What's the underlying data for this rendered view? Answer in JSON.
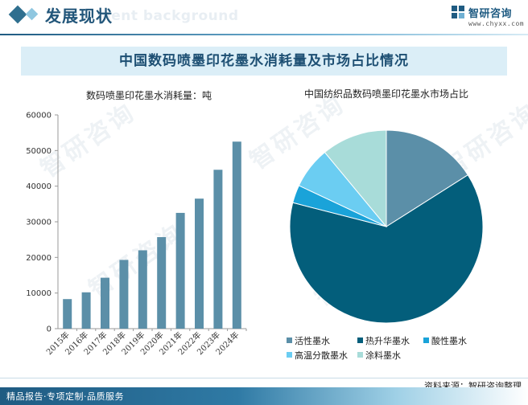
{
  "header": {
    "title": "发展现状",
    "ghost_text": "ment background",
    "logo_name": "智研咨询",
    "logo_url": "www.chyxx.com"
  },
  "banner_title": "中国数码喷墨印花墨水消耗量及市场占比情况",
  "watermark_text": "智研咨询",
  "source": "资料来源：智研咨询整理",
  "footer": "精品报告·专项定制·品质服务",
  "colors": {
    "bar": "#5b8fa8",
    "axis": "#999999",
    "brand": "#1f5b82"
  },
  "chart_data": [
    {
      "type": "bar",
      "title": "数码喷墨印花墨水消耗量：吨",
      "categories": [
        "2015年",
        "2016年",
        "2017年",
        "2018年",
        "2019年",
        "2020年",
        "2021年",
        "2022年",
        "2023年",
        "2024年"
      ],
      "values": [
        8300,
        10200,
        14300,
        19300,
        22000,
        25700,
        32500,
        36500,
        44600,
        52500
      ],
      "yticks": [
        0,
        10000,
        20000,
        30000,
        40000,
        50000,
        60000
      ],
      "ylim": [
        0,
        60000
      ],
      "grid": false
    },
    {
      "type": "pie",
      "title": "中国纺织品数码喷墨印花墨水市场占比",
      "legend_position": "bottom",
      "slices": [
        {
          "label": "活性墨水",
          "value": 16,
          "color": "#5b8fa8"
        },
        {
          "label": "热升华墨水",
          "value": 63,
          "color": "#035e7b"
        },
        {
          "label": "酸性墨水",
          "value": 3,
          "color": "#1aa3d9"
        },
        {
          "label": "高温分散墨水",
          "value": 7,
          "color": "#6bcdf2"
        },
        {
          "label": "涂料墨水",
          "value": 11,
          "color": "#a8dcd9"
        }
      ]
    }
  ]
}
